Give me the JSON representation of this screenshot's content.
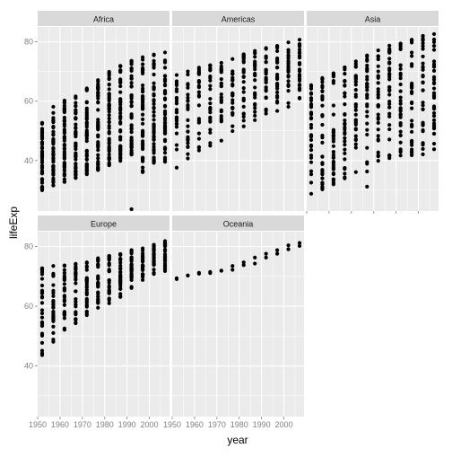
{
  "chart_data": {
    "type": "scatter",
    "facet_by": "continent",
    "x_label": "year",
    "y_label": "lifeExp",
    "x_range": [
      1950,
      2009
    ],
    "y_range": [
      23,
      85
    ],
    "x_ticks": [
      1950,
      1960,
      1970,
      1980,
      1990,
      2000
    ],
    "y_ticks": [
      40,
      60,
      80
    ],
    "x_tick_labels": [
      "1950",
      "1960",
      "1970",
      "1980",
      "1990",
      "2000"
    ],
    "y_tick_labels": [
      "40",
      "60",
      "80"
    ],
    "years": [
      1952,
      1957,
      1962,
      1967,
      1972,
      1977,
      1982,
      1987,
      1992,
      1997,
      2002,
      2007
    ],
    "grid": true,
    "point_color": "#000000",
    "panel_background": "#ebebeb",
    "strip_background": "#d9d9d9",
    "panels": [
      {
        "name": "Africa",
        "ranges": [
          [
            30,
            52.7
          ],
          [
            31.6,
            58.1
          ],
          [
            32.8,
            60.2
          ],
          [
            34.1,
            61.6
          ],
          [
            35.4,
            64.3
          ],
          [
            36.8,
            67.1
          ],
          [
            38.4,
            69.9
          ],
          [
            39.9,
            71.9
          ],
          [
            23.6,
            73.6
          ],
          [
            36.1,
            74.8
          ],
          [
            39.2,
            75.7
          ],
          [
            39.6,
            76.4
          ]
        ],
        "outliers": [
          {
            "year": 1992,
            "lifeExp": 23.6
          }
        ],
        "n_points": 52
      },
      {
        "name": "Americas",
        "ranges": [
          [
            37.6,
            68.8
          ],
          [
            40.7,
            70
          ],
          [
            43.4,
            71.3
          ],
          [
            45,
            72.1
          ],
          [
            46.7,
            72.9
          ],
          [
            49.9,
            74.2
          ],
          [
            51.5,
            75.8
          ],
          [
            53.6,
            76.9
          ],
          [
            55.8,
            77.9
          ],
          [
            56.7,
            78.6
          ],
          [
            58.1,
            79.8
          ],
          [
            60.9,
            80.7
          ]
        ],
        "n_points": 25
      },
      {
        "name": "Asia",
        "ranges": [
          [
            28.8,
            65.4
          ],
          [
            30.3,
            67.8
          ],
          [
            32,
            69.4
          ],
          [
            34,
            71.4
          ],
          [
            36.1,
            73.4
          ],
          [
            31.2,
            75.4
          ],
          [
            39.9,
            77.1
          ],
          [
            40.8,
            78.7
          ],
          [
            41.7,
            79.4
          ],
          [
            41.8,
            80.7
          ],
          [
            42.1,
            82
          ],
          [
            43.8,
            82.6
          ]
        ],
        "outliers": [
          {
            "year": 1977,
            "lifeExp": 31.2
          }
        ],
        "n_points": 33
      },
      {
        "name": "Europe",
        "ranges": [
          [
            43.6,
            72.7
          ],
          [
            48.1,
            73.5
          ],
          [
            52.1,
            73.7
          ],
          [
            54.3,
            74.2
          ],
          [
            57,
            74.7
          ],
          [
            59.5,
            76.1
          ],
          [
            61,
            76.9
          ],
          [
            63.1,
            77.5
          ],
          [
            66.1,
            78.8
          ],
          [
            68.8,
            79.4
          ],
          [
            70.8,
            80.6
          ],
          [
            71.8,
            81.8
          ]
        ],
        "n_points": 30
      },
      {
        "name": "Oceania",
        "ranges": [
          [
            69.1,
            69.4
          ],
          [
            70.3,
            70.3
          ],
          [
            70.9,
            71.2
          ],
          [
            71.1,
            71.5
          ],
          [
            71.9,
            71.9
          ],
          [
            72.2,
            73.5
          ],
          [
            73.8,
            74.7
          ],
          [
            74.3,
            76.3
          ],
          [
            76.3,
            77.6
          ],
          [
            77.6,
            78.8
          ],
          [
            79.1,
            80.4
          ],
          [
            80.2,
            81.2
          ]
        ],
        "n_points": 2
      }
    ]
  }
}
